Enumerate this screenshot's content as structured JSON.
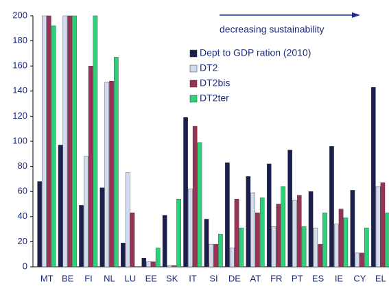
{
  "chart_data": {
    "type": "bar",
    "annotation": "decreasing sustainability",
    "categories": [
      "MT",
      "BE",
      "FI",
      "NL",
      "LU",
      "EE",
      "SK",
      "IT",
      "SI",
      "DE",
      "AT",
      "FR",
      "PT",
      "ES",
      "IE",
      "CY",
      "EL"
    ],
    "series": [
      {
        "name": "Dept to GDP ration (2010)",
        "color": "#1a1f4d",
        "values": [
          68,
          97,
          49,
          63,
          19,
          7,
          41,
          119,
          38,
          83,
          72,
          82,
          93,
          60,
          96,
          61,
          143
        ]
      },
      {
        "name": "DT2",
        "color": "#d3dcef",
        "values": [
          200,
          200,
          88,
          147,
          75,
          4,
          1,
          62,
          18,
          15,
          59,
          32,
          53,
          31,
          34,
          11,
          64
        ]
      },
      {
        "name": "DT2bis",
        "color": "#993355",
        "values": [
          200,
          200,
          160,
          148,
          43,
          4,
          1,
          112,
          18,
          54,
          43,
          50,
          57,
          18,
          46,
          11,
          67
        ]
      },
      {
        "name": "DT2ter",
        "color": "#2fd07a",
        "values": [
          192,
          200,
          200,
          167,
          null,
          15,
          54,
          99,
          26,
          31,
          55,
          64,
          32,
          43,
          39,
          31,
          43
        ]
      }
    ],
    "ylim": [
      0,
      200
    ],
    "yticks": [
      0,
      20,
      40,
      60,
      80,
      100,
      120,
      140,
      160,
      180,
      200
    ],
    "grid": false
  }
}
